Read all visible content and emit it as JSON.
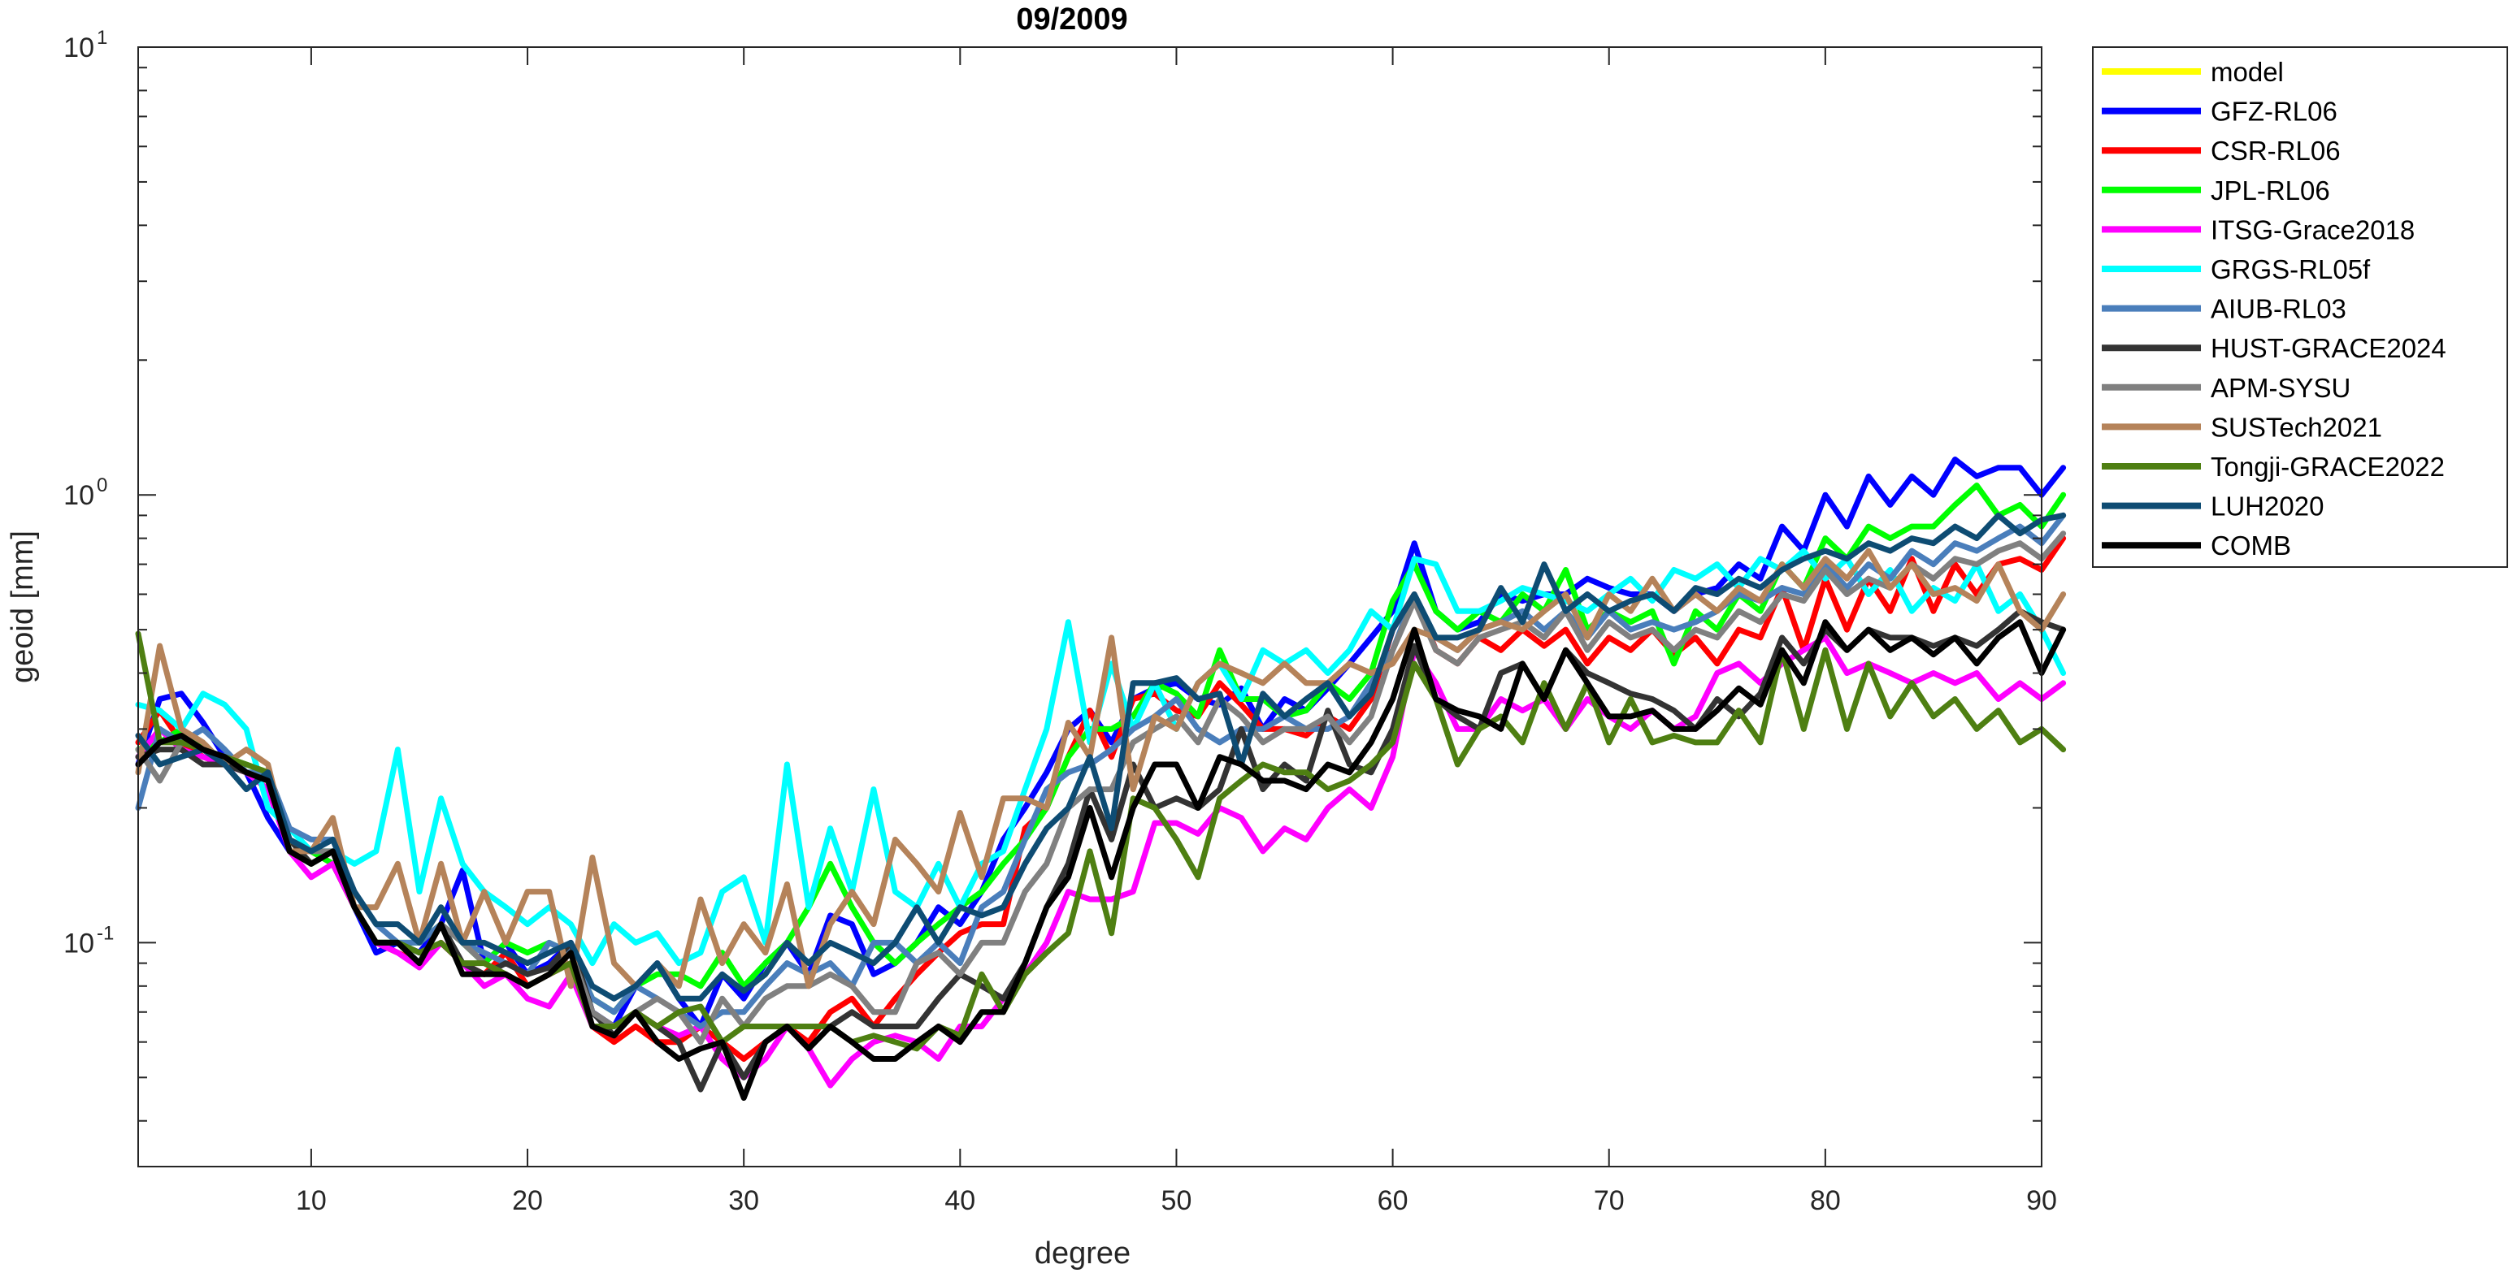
{
  "chart_data": {
    "type": "line",
    "title": "09/2009",
    "xlabel": "degree",
    "ylabel": "geoid [mm]",
    "xlim": [
      2,
      90
    ],
    "ylim": [
      0.03162,
      10
    ],
    "yscale": "log",
    "grid": false,
    "legend_position": "outside-right",
    "x_ticks": [
      10,
      20,
      30,
      40,
      50,
      60,
      70,
      80,
      90
    ],
    "y_ticks": [
      {
        "value": 0.1,
        "base": "10",
        "exp": "-1"
      },
      {
        "value": 1,
        "base": "10",
        "exp": "0"
      },
      {
        "value": 10,
        "base": "10",
        "exp": "1"
      }
    ],
    "series": [
      {
        "name": "model",
        "color": "#FFFF00",
        "x_start": 2,
        "values": []
      },
      {
        "name": "GFZ-RL06",
        "color": "#0000FF",
        "x_start": 2,
        "values": [
          0.25,
          0.35,
          0.36,
          0.31,
          0.26,
          0.24,
          0.19,
          0.16,
          0.15,
          0.16,
          0.12,
          0.095,
          0.1,
          0.095,
          0.11,
          0.145,
          0.09,
          0.1,
          0.085,
          0.09,
          0.1,
          0.07,
          0.065,
          0.08,
          0.09,
          0.075,
          0.065,
          0.085,
          0.075,
          0.09,
          0.1,
          0.085,
          0.115,
          0.11,
          0.085,
          0.09,
          0.1,
          0.12,
          0.11,
          0.13,
          0.17,
          0.2,
          0.24,
          0.3,
          0.33,
          0.28,
          0.35,
          0.37,
          0.38,
          0.35,
          0.34,
          0.37,
          0.3,
          0.35,
          0.33,
          0.37,
          0.42,
          0.48,
          0.55,
          0.78,
          0.55,
          0.5,
          0.52,
          0.6,
          0.58,
          0.6,
          0.6,
          0.65,
          0.62,
          0.6,
          0.6,
          0.55,
          0.6,
          0.62,
          0.7,
          0.65,
          0.85,
          0.75,
          1.0,
          0.85,
          1.1,
          0.95,
          1.1,
          1.0,
          1.2,
          1.1,
          1.15,
          1.15,
          1.0,
          1.15
        ]
      },
      {
        "name": "CSR-RL06",
        "color": "#FF0000",
        "x_start": 2,
        "values": [
          0.28,
          0.33,
          0.28,
          0.26,
          0.25,
          0.24,
          0.22,
          0.17,
          0.16,
          0.15,
          0.12,
          0.1,
          0.095,
          0.09,
          0.1,
          0.09,
          0.085,
          0.095,
          0.08,
          0.085,
          0.09,
          0.065,
          0.06,
          0.065,
          0.06,
          0.06,
          0.065,
          0.06,
          0.055,
          0.06,
          0.065,
          0.06,
          0.07,
          0.075,
          0.065,
          0.075,
          0.085,
          0.095,
          0.105,
          0.11,
          0.11,
          0.18,
          0.2,
          0.26,
          0.33,
          0.26,
          0.35,
          0.36,
          0.33,
          0.32,
          0.38,
          0.34,
          0.3,
          0.3,
          0.29,
          0.32,
          0.3,
          0.35,
          0.5,
          0.6,
          0.45,
          0.42,
          0.48,
          0.45,
          0.5,
          0.46,
          0.5,
          0.42,
          0.48,
          0.45,
          0.5,
          0.44,
          0.48,
          0.42,
          0.5,
          0.48,
          0.62,
          0.45,
          0.65,
          0.5,
          0.65,
          0.55,
          0.72,
          0.55,
          0.7,
          0.6,
          0.7,
          0.72,
          0.68,
          0.8
        ]
      },
      {
        "name": "JPL-RL06",
        "color": "#00FF00",
        "x_start": 2,
        "values": [
          0.27,
          0.28,
          0.3,
          0.27,
          0.26,
          0.25,
          0.24,
          0.17,
          0.16,
          0.15,
          0.12,
          0.1,
          0.1,
          0.1,
          0.11,
          0.1,
          0.09,
          0.1,
          0.095,
          0.1,
          0.095,
          0.075,
          0.07,
          0.08,
          0.085,
          0.085,
          0.08,
          0.095,
          0.08,
          0.09,
          0.1,
          0.12,
          0.15,
          0.12,
          0.1,
          0.09,
          0.1,
          0.11,
          0.12,
          0.13,
          0.15,
          0.17,
          0.2,
          0.26,
          0.3,
          0.3,
          0.32,
          0.38,
          0.36,
          0.32,
          0.45,
          0.35,
          0.35,
          0.32,
          0.33,
          0.38,
          0.35,
          0.4,
          0.58,
          0.7,
          0.55,
          0.5,
          0.55,
          0.52,
          0.6,
          0.55,
          0.68,
          0.5,
          0.55,
          0.52,
          0.55,
          0.42,
          0.55,
          0.5,
          0.6,
          0.55,
          0.7,
          0.62,
          0.8,
          0.72,
          0.85,
          0.8,
          0.85,
          0.85,
          0.95,
          1.05,
          0.9,
          0.95,
          0.85,
          1.0
        ]
      },
      {
        "name": "ITSG-Grace2018",
        "color": "#FF00FF",
        "x_start": 2,
        "values": [
          0.26,
          0.3,
          0.27,
          0.26,
          0.25,
          0.24,
          0.22,
          0.16,
          0.14,
          0.15,
          0.12,
          0.1,
          0.095,
          0.088,
          0.1,
          0.09,
          0.08,
          0.085,
          0.075,
          0.072,
          0.085,
          0.065,
          0.062,
          0.07,
          0.065,
          0.062,
          0.065,
          0.055,
          0.05,
          0.055,
          0.065,
          0.058,
          0.048,
          0.055,
          0.06,
          0.062,
          0.06,
          0.055,
          0.065,
          0.065,
          0.075,
          0.085,
          0.1,
          0.13,
          0.125,
          0.125,
          0.13,
          0.185,
          0.185,
          0.175,
          0.2,
          0.19,
          0.16,
          0.18,
          0.17,
          0.2,
          0.22,
          0.2,
          0.26,
          0.45,
          0.38,
          0.3,
          0.3,
          0.35,
          0.33,
          0.35,
          0.3,
          0.35,
          0.32,
          0.3,
          0.33,
          0.3,
          0.32,
          0.4,
          0.42,
          0.38,
          0.42,
          0.45,
          0.48,
          0.4,
          0.42,
          0.4,
          0.38,
          0.4,
          0.38,
          0.4,
          0.35,
          0.38,
          0.35,
          0.38
        ]
      },
      {
        "name": "GRGS-RL05f",
        "color": "#00FFFF",
        "x_start": 2,
        "values": [
          0.34,
          0.33,
          0.3,
          0.36,
          0.34,
          0.3,
          0.2,
          0.18,
          0.16,
          0.16,
          0.15,
          0.16,
          0.27,
          0.13,
          0.21,
          0.15,
          0.13,
          0.12,
          0.11,
          0.12,
          0.11,
          0.09,
          0.11,
          0.1,
          0.105,
          0.09,
          0.095,
          0.13,
          0.14,
          0.1,
          0.25,
          0.12,
          0.18,
          0.13,
          0.22,
          0.13,
          0.12,
          0.15,
          0.12,
          0.15,
          0.16,
          0.22,
          0.3,
          0.52,
          0.28,
          0.42,
          0.3,
          0.38,
          0.3,
          0.38,
          0.42,
          0.35,
          0.45,
          0.42,
          0.45,
          0.4,
          0.45,
          0.55,
          0.5,
          0.72,
          0.7,
          0.55,
          0.55,
          0.58,
          0.62,
          0.6,
          0.58,
          0.55,
          0.6,
          0.65,
          0.58,
          0.68,
          0.65,
          0.7,
          0.62,
          0.72,
          0.68,
          0.75,
          0.65,
          0.72,
          0.6,
          0.68,
          0.55,
          0.62,
          0.58,
          0.7,
          0.55,
          0.6,
          0.5,
          0.4
        ]
      },
      {
        "name": "AIUB-RL03",
        "color": "#4A7EBB",
        "x_start": 2,
        "values": [
          0.2,
          0.3,
          0.28,
          0.3,
          0.27,
          0.24,
          0.24,
          0.18,
          0.17,
          0.17,
          0.13,
          0.11,
          0.1,
          0.1,
          0.11,
          0.1,
          0.095,
          0.09,
          0.085,
          0.1,
          0.095,
          0.075,
          0.07,
          0.08,
          0.075,
          0.07,
          0.065,
          0.07,
          0.07,
          0.08,
          0.09,
          0.085,
          0.09,
          0.08,
          0.1,
          0.1,
          0.09,
          0.1,
          0.09,
          0.12,
          0.13,
          0.17,
          0.22,
          0.24,
          0.25,
          0.27,
          0.3,
          0.32,
          0.35,
          0.3,
          0.28,
          0.3,
          0.3,
          0.32,
          0.3,
          0.3,
          0.32,
          0.38,
          0.45,
          0.6,
          0.48,
          0.45,
          0.5,
          0.52,
          0.55,
          0.5,
          0.55,
          0.48,
          0.55,
          0.5,
          0.52,
          0.5,
          0.52,
          0.55,
          0.6,
          0.58,
          0.62,
          0.6,
          0.7,
          0.62,
          0.7,
          0.65,
          0.75,
          0.7,
          0.78,
          0.75,
          0.8,
          0.85,
          0.78,
          0.9
        ]
      },
      {
        "name": "HUST-GRACE2024",
        "color": "#333333",
        "x_start": 2,
        "values": [
          0.26,
          0.27,
          0.27,
          0.25,
          0.25,
          0.24,
          0.23,
          0.17,
          0.15,
          0.16,
          0.12,
          0.1,
          0.1,
          0.09,
          0.11,
          0.09,
          0.085,
          0.09,
          0.085,
          0.088,
          0.1,
          0.07,
          0.062,
          0.07,
          0.065,
          0.06,
          0.047,
          0.06,
          0.05,
          0.06,
          0.065,
          0.065,
          0.065,
          0.07,
          0.065,
          0.065,
          0.065,
          0.075,
          0.085,
          0.08,
          0.075,
          0.09,
          0.12,
          0.15,
          0.22,
          0.17,
          0.25,
          0.2,
          0.21,
          0.2,
          0.22,
          0.3,
          0.22,
          0.25,
          0.23,
          0.33,
          0.25,
          0.24,
          0.3,
          0.46,
          0.35,
          0.32,
          0.3,
          0.4,
          0.42,
          0.35,
          0.45,
          0.4,
          0.38,
          0.36,
          0.35,
          0.33,
          0.3,
          0.35,
          0.32,
          0.36,
          0.48,
          0.42,
          0.5,
          0.45,
          0.5,
          0.48,
          0.48,
          0.46,
          0.48,
          0.46,
          0.5,
          0.55,
          0.52,
          0.5
        ]
      },
      {
        "name": "APM-SYSU",
        "color": "#808080",
        "x_start": 2,
        "values": [
          0.27,
          0.23,
          0.28,
          0.27,
          0.26,
          0.24,
          0.23,
          0.17,
          0.16,
          0.16,
          0.12,
          0.1,
          0.1,
          0.09,
          0.11,
          0.1,
          0.09,
          0.085,
          0.08,
          0.085,
          0.095,
          0.07,
          0.065,
          0.07,
          0.075,
          0.07,
          0.06,
          0.075,
          0.065,
          0.075,
          0.08,
          0.08,
          0.085,
          0.08,
          0.07,
          0.07,
          0.09,
          0.095,
          0.085,
          0.1,
          0.1,
          0.13,
          0.15,
          0.2,
          0.22,
          0.22,
          0.28,
          0.3,
          0.32,
          0.28,
          0.35,
          0.32,
          0.28,
          0.3,
          0.3,
          0.32,
          0.28,
          0.32,
          0.45,
          0.58,
          0.45,
          0.42,
          0.48,
          0.5,
          0.52,
          0.48,
          0.55,
          0.45,
          0.52,
          0.48,
          0.5,
          0.45,
          0.5,
          0.48,
          0.55,
          0.52,
          0.6,
          0.58,
          0.68,
          0.6,
          0.65,
          0.62,
          0.7,
          0.65,
          0.72,
          0.7,
          0.75,
          0.78,
          0.72,
          0.82
        ]
      },
      {
        "name": "SUSTech2021",
        "color": "#B5835A",
        "x_start": 2,
        "values": [
          0.24,
          0.46,
          0.3,
          0.28,
          0.25,
          0.27,
          0.25,
          0.16,
          0.16,
          0.19,
          0.12,
          0.12,
          0.15,
          0.1,
          0.15,
          0.1,
          0.13,
          0.1,
          0.13,
          0.13,
          0.08,
          0.155,
          0.09,
          0.08,
          0.09,
          0.08,
          0.125,
          0.09,
          0.11,
          0.095,
          0.135,
          0.08,
          0.11,
          0.13,
          0.11,
          0.17,
          0.15,
          0.13,
          0.195,
          0.14,
          0.21,
          0.21,
          0.2,
          0.31,
          0.26,
          0.48,
          0.22,
          0.32,
          0.3,
          0.38,
          0.42,
          0.4,
          0.38,
          0.42,
          0.38,
          0.38,
          0.42,
          0.4,
          0.42,
          0.5,
          0.48,
          0.45,
          0.5,
          0.52,
          0.5,
          0.55,
          0.6,
          0.48,
          0.6,
          0.55,
          0.65,
          0.55,
          0.6,
          0.55,
          0.62,
          0.58,
          0.7,
          0.62,
          0.72,
          0.65,
          0.75,
          0.62,
          0.7,
          0.6,
          0.62,
          0.58,
          0.7,
          0.55,
          0.5,
          0.6
        ]
      },
      {
        "name": "Tongji-GRACE2022",
        "color": "#4E7F12",
        "x_start": 2,
        "values": [
          0.49,
          0.28,
          0.28,
          0.27,
          0.26,
          0.25,
          0.24,
          0.16,
          0.15,
          0.16,
          0.12,
          0.1,
          0.1,
          0.095,
          0.1,
          0.09,
          0.09,
          0.085,
          0.08,
          0.085,
          0.09,
          0.065,
          0.065,
          0.07,
          0.065,
          0.07,
          0.072,
          0.06,
          0.065,
          0.065,
          0.065,
          0.065,
          0.065,
          0.06,
          0.062,
          0.06,
          0.058,
          0.065,
          0.062,
          0.085,
          0.07,
          0.085,
          0.095,
          0.105,
          0.16,
          0.105,
          0.21,
          0.2,
          0.17,
          0.14,
          0.21,
          0.23,
          0.25,
          0.24,
          0.24,
          0.22,
          0.23,
          0.25,
          0.28,
          0.42,
          0.35,
          0.25,
          0.3,
          0.32,
          0.28,
          0.38,
          0.3,
          0.38,
          0.28,
          0.35,
          0.28,
          0.29,
          0.28,
          0.28,
          0.33,
          0.28,
          0.45,
          0.3,
          0.45,
          0.3,
          0.42,
          0.32,
          0.38,
          0.32,
          0.35,
          0.3,
          0.33,
          0.28,
          0.3,
          0.27
        ]
      },
      {
        "name": "LUH2020",
        "color": "#0E4C73",
        "x_start": 2,
        "values": [
          0.29,
          0.25,
          0.26,
          0.27,
          0.25,
          0.22,
          0.24,
          0.17,
          0.16,
          0.17,
          0.13,
          0.11,
          0.11,
          0.1,
          0.12,
          0.1,
          0.1,
          0.095,
          0.09,
          0.095,
          0.1,
          0.08,
          0.075,
          0.08,
          0.09,
          0.075,
          0.075,
          0.085,
          0.078,
          0.085,
          0.1,
          0.09,
          0.1,
          0.095,
          0.09,
          0.1,
          0.12,
          0.1,
          0.12,
          0.115,
          0.12,
          0.15,
          0.18,
          0.2,
          0.26,
          0.18,
          0.38,
          0.38,
          0.39,
          0.35,
          0.36,
          0.25,
          0.36,
          0.32,
          0.35,
          0.38,
          0.32,
          0.36,
          0.5,
          0.6,
          0.48,
          0.48,
          0.5,
          0.62,
          0.52,
          0.7,
          0.55,
          0.6,
          0.55,
          0.58,
          0.6,
          0.55,
          0.62,
          0.6,
          0.65,
          0.62,
          0.68,
          0.72,
          0.75,
          0.72,
          0.78,
          0.75,
          0.8,
          0.78,
          0.85,
          0.8,
          0.9,
          0.82,
          0.88,
          0.9
        ]
      },
      {
        "name": "COMB",
        "color": "#000000",
        "x_start": 2,
        "values": [
          0.25,
          0.28,
          0.29,
          0.27,
          0.26,
          0.24,
          0.23,
          0.16,
          0.15,
          0.16,
          0.12,
          0.1,
          0.1,
          0.09,
          0.11,
          0.085,
          0.085,
          0.085,
          0.08,
          0.085,
          0.095,
          0.065,
          0.062,
          0.07,
          0.06,
          0.055,
          0.058,
          0.06,
          0.045,
          0.06,
          0.065,
          0.058,
          0.065,
          0.06,
          0.055,
          0.055,
          0.06,
          0.065,
          0.06,
          0.07,
          0.07,
          0.09,
          0.12,
          0.14,
          0.2,
          0.14,
          0.2,
          0.25,
          0.25,
          0.2,
          0.26,
          0.25,
          0.23,
          0.23,
          0.22,
          0.25,
          0.24,
          0.28,
          0.35,
          0.5,
          0.35,
          0.33,
          0.32,
          0.3,
          0.42,
          0.35,
          0.45,
          0.38,
          0.32,
          0.32,
          0.33,
          0.3,
          0.3,
          0.33,
          0.37,
          0.34,
          0.45,
          0.38,
          0.52,
          0.45,
          0.5,
          0.45,
          0.48,
          0.44,
          0.48,
          0.42,
          0.48,
          0.52,
          0.4,
          0.5
        ]
      }
    ]
  }
}
